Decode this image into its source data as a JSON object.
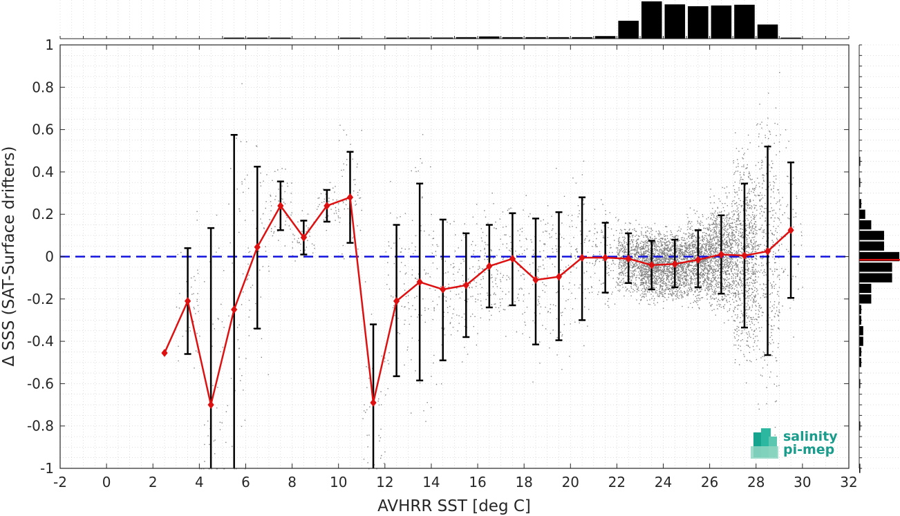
{
  "chart_data": {
    "type": "line",
    "xlabel": "AVHRR SST [deg C]",
    "ylabel": "Δ SSS (SAT-Surface drifters)",
    "xlim": [
      -2,
      32
    ],
    "ylim": [
      -1,
      1
    ],
    "xticks": [
      -2,
      0,
      2,
      4,
      6,
      8,
      10,
      12,
      14,
      16,
      18,
      20,
      22,
      24,
      26,
      28,
      30,
      32
    ],
    "yticks": [
      -1,
      -0.8,
      -0.6,
      -0.4,
      -0.2,
      0,
      0.2,
      0.4,
      0.6,
      0.8,
      1
    ],
    "xtick_labels": [
      "-2",
      "0",
      "2",
      "4",
      "6",
      "8",
      "10",
      "12",
      "14",
      "16",
      "18",
      "20",
      "22",
      "24",
      "26",
      "28",
      "30",
      "32"
    ],
    "ytick_labels": [
      "-1",
      "-0.8",
      "-0.6",
      "-0.4",
      "-0.2",
      "0",
      "0.2",
      "0.4",
      "0.6",
      "0.8",
      "1"
    ],
    "grid": true,
    "reference_line": {
      "y": 0,
      "style": "dashed",
      "color": "#1010e0"
    },
    "series": [
      {
        "type": "line-errorbar",
        "color": "#dd1111",
        "errorbar_color": "#000000",
        "x": [
          2.5,
          3.5,
          4.5,
          5.5,
          6.5,
          7.5,
          8.5,
          9.5,
          10.5,
          11.5,
          12.5,
          13.5,
          14.5,
          15.5,
          16.5,
          17.5,
          18.5,
          19.5,
          20.5,
          21.5,
          22.5,
          23.5,
          24.5,
          25.5,
          26.5,
          27.5,
          28.5,
          29.5
        ],
        "y": [
          -0.455,
          -0.21,
          -0.7,
          -0.25,
          0.045,
          0.24,
          0.09,
          0.24,
          0.28,
          -0.69,
          -0.21,
          -0.12,
          -0.155,
          -0.135,
          -0.045,
          -0.01,
          -0.11,
          -0.095,
          -0.005,
          -0.005,
          -0.01,
          -0.04,
          -0.035,
          -0.015,
          0.01,
          0.005,
          0.025,
          0.125
        ],
        "err_low": [
          null,
          -0.46,
          -1.0,
          -1.0,
          -0.34,
          0.125,
          0.01,
          0.165,
          0.065,
          -1.0,
          -0.565,
          -0.585,
          -0.49,
          -0.38,
          -0.24,
          -0.23,
          -0.415,
          -0.395,
          -0.3,
          -0.17,
          -0.125,
          -0.155,
          -0.145,
          -0.145,
          -0.175,
          -0.335,
          -0.465,
          -0.195
        ],
        "err_high": [
          null,
          0.04,
          0.135,
          0.575,
          0.425,
          0.355,
          0.17,
          0.315,
          0.495,
          -0.32,
          0.15,
          0.345,
          0.175,
          0.11,
          0.15,
          0.205,
          0.18,
          0.21,
          0.28,
          0.16,
          0.11,
          0.075,
          0.08,
          0.125,
          0.195,
          0.345,
          0.52,
          0.445
        ]
      },
      {
        "type": "scatter-density",
        "color": "#808080",
        "x_range": [
          3,
          29.8
        ]
      }
    ],
    "top_histogram": {
      "color": "#000000",
      "bin_centers": [
        2.5,
        3.5,
        4.5,
        5.5,
        6.5,
        7.5,
        8.5,
        9.5,
        10.5,
        11.5,
        12.5,
        13.5,
        14.5,
        15.5,
        16.5,
        17.5,
        18.5,
        19.5,
        20.5,
        21.5,
        22.5,
        23.5,
        24.5,
        25.5,
        26.5,
        27.5,
        28.5,
        29.5
      ],
      "relative_heights": [
        0.0,
        0.0,
        0.0,
        0.01,
        0.01,
        0.01,
        0.0,
        0.0,
        0.01,
        0.0,
        0.02,
        0.03,
        0.03,
        0.04,
        0.06,
        0.04,
        0.04,
        0.04,
        0.04,
        0.07,
        0.48,
        1.0,
        0.92,
        0.87,
        0.89,
        0.91,
        0.38,
        0.02
      ]
    },
    "right_histogram": {
      "color": "#000000",
      "median_color": "#dd1111",
      "median_value": -0.015,
      "bin_centers": [
        0.45,
        0.35,
        0.25,
        0.2,
        0.15,
        0.1,
        0.05,
        0.0,
        -0.05,
        -0.1,
        -0.15,
        -0.2,
        -0.25,
        -0.3,
        -0.35,
        -0.4,
        -0.45,
        -0.5,
        -0.6,
        -0.8,
        -1.0
      ],
      "relative_heights": [
        0.02,
        0.02,
        0.05,
        0.15,
        0.3,
        0.62,
        0.62,
        1.0,
        0.82,
        0.82,
        0.3,
        0.3,
        0.05,
        0.05,
        0.1,
        0.1,
        0.05,
        0.05,
        0.02,
        0.02,
        0.02
      ]
    }
  },
  "logo": {
    "line1": "salinity",
    "line2": "pi-mep"
  }
}
